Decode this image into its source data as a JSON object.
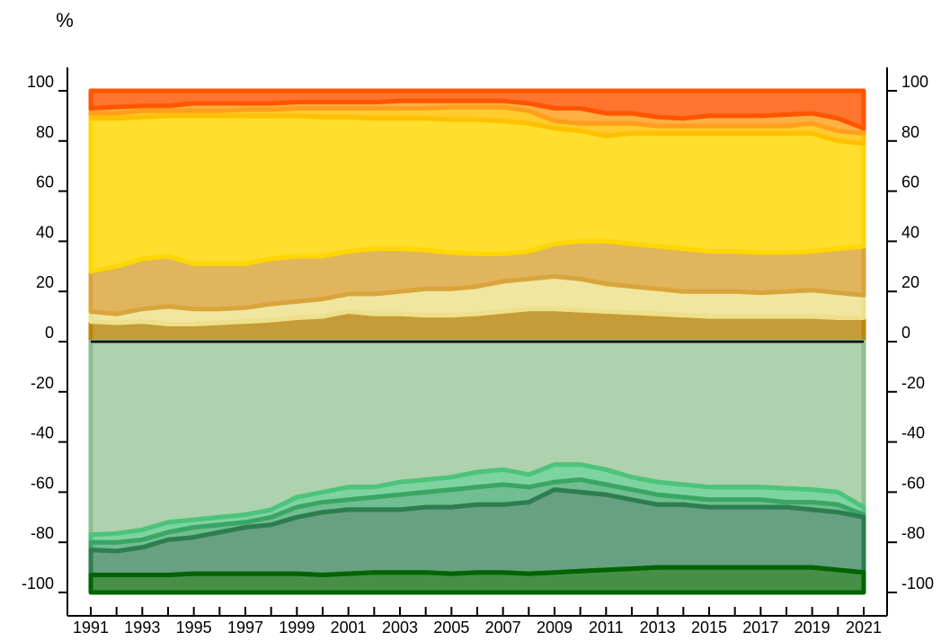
{
  "chart_data": {
    "type": "area",
    "unit": "%",
    "x": [
      1991,
      1992,
      1993,
      1994,
      1995,
      1996,
      1997,
      1998,
      1999,
      2000,
      2001,
      2002,
      2003,
      2004,
      2005,
      2006,
      2007,
      2008,
      2009,
      2010,
      2011,
      2012,
      2013,
      2014,
      2015,
      2016,
      2017,
      2018,
      2019,
      2020,
      2021
    ],
    "x_tick_labels": [
      "1991",
      "1993",
      "1995",
      "1997",
      "1999",
      "2001",
      "2003",
      "2005",
      "2007",
      "2009",
      "2011",
      "2013",
      "2015",
      "2017",
      "2019",
      "2021"
    ],
    "xlim": [
      1991,
      2021
    ],
    "ylim": [
      -100,
      100
    ],
    "y_ticks": [
      100,
      80,
      60,
      40,
      20,
      0,
      -20,
      -40,
      -60,
      -80,
      -100
    ],
    "grid": false,
    "legend": "none",
    "positive_boundaries": [
      {
        "color": "#b8860b",
        "values": [
          8,
          7.5,
          8,
          7,
          7,
          7.5,
          8,
          8.5,
          9.5,
          10,
          12,
          11,
          11,
          10.5,
          10.5,
          11,
          12,
          13,
          13,
          12.5,
          12,
          11.5,
          11,
          10.5,
          10,
          10,
          10,
          10,
          10,
          9.5,
          9.5
        ]
      },
      {
        "color": "#ede08a",
        "values": [
          12,
          11,
          13,
          14,
          13,
          13,
          13.5,
          15,
          16,
          17,
          19,
          19,
          20,
          21,
          21,
          22,
          24,
          25,
          26,
          25,
          23,
          22,
          21,
          20,
          20,
          20,
          19.5,
          20,
          20.5,
          19.5,
          18.5
        ]
      },
      {
        "color": "#d9a53b",
        "values": [
          28,
          30,
          33,
          34,
          31,
          31,
          31,
          33,
          34,
          34,
          36,
          37,
          37,
          36.5,
          35.5,
          35,
          35,
          36,
          39,
          40,
          40,
          39,
          38,
          37,
          36,
          36,
          35.5,
          35.5,
          36,
          37,
          38
        ]
      },
      {
        "color": "#ffd700",
        "values": [
          89,
          89,
          89.5,
          90,
          90,
          90,
          90,
          90,
          90,
          89.5,
          89.5,
          89,
          89,
          89,
          88.5,
          88.5,
          88,
          87,
          85,
          84,
          82,
          83,
          83,
          83,
          83,
          83,
          83,
          83,
          83,
          80,
          79
        ]
      },
      {
        "color": "#ffc000",
        "values": [
          91,
          91,
          92,
          92,
          92,
          92,
          92.5,
          92.5,
          93,
          93,
          93,
          93,
          93,
          93,
          93.5,
          93.5,
          93.5,
          92,
          88,
          87,
          87,
          87,
          86,
          86,
          86,
          86,
          86,
          86,
          87,
          84,
          83
        ]
      },
      {
        "color": "#ff9f1c",
        "values": [
          93,
          93.5,
          94,
          94,
          95,
          95,
          95,
          95,
          95.5,
          95.5,
          95.5,
          95.5,
          96,
          96,
          96,
          96,
          96,
          95,
          93,
          93,
          91,
          91,
          89.5,
          89,
          90,
          90,
          90,
          90.5,
          91,
          89,
          85
        ]
      },
      {
        "color": "#ff5500",
        "values": [
          100,
          100,
          100,
          100,
          100,
          100,
          100,
          100,
          100,
          100,
          100,
          100,
          100,
          100,
          100,
          100,
          100,
          100,
          100,
          100,
          100,
          100,
          100,
          100,
          100,
          100,
          100,
          100,
          100,
          100,
          100
        ]
      }
    ],
    "negative_boundaries": [
      {
        "color": "#8fbf8f",
        "values": [
          -77,
          -76.5,
          -75,
          -72,
          -71,
          -70,
          -69,
          -67,
          -62,
          -60,
          -58,
          -58,
          -56,
          -55,
          -54,
          -52,
          -51,
          -53,
          -49,
          -49,
          -51,
          -54,
          -56,
          -57,
          -58,
          -58,
          -58,
          -58.5,
          -59,
          -60,
          -66
        ]
      },
      {
        "color": "#4cc47c",
        "values": [
          -80,
          -80,
          -79,
          -76,
          -74,
          -73,
          -72,
          -70,
          -66,
          -64,
          -63,
          -62,
          -61,
          -60,
          -59,
          -58,
          -57,
          -58,
          -56,
          -55,
          -57,
          -59,
          -61,
          -62,
          -63,
          -63,
          -63,
          -64,
          -64,
          -65,
          -69
        ]
      },
      {
        "color": "#3aa565",
        "values": [
          -83,
          -83.5,
          -82,
          -79,
          -78,
          -76,
          -74,
          -73,
          -70,
          -68,
          -67,
          -67,
          -67,
          -66,
          -66,
          -65,
          -65,
          -64,
          -59,
          -60,
          -61,
          -63,
          -65,
          -65,
          -66,
          -66,
          -66,
          -66,
          -67,
          -68,
          -70
        ]
      },
      {
        "color": "#2e7d50",
        "values": [
          -93,
          -93,
          -93,
          -93,
          -92.5,
          -92.5,
          -92.5,
          -92.5,
          -92.5,
          -93,
          -92.5,
          -92,
          -92,
          -92,
          -92.5,
          -92,
          -92,
          -92.5,
          -92,
          -91.5,
          -91,
          -90.5,
          -90,
          -90,
          -90,
          -90,
          -90,
          -90,
          -90,
          -91,
          -92
        ]
      },
      {
        "color": "#006400",
        "values": [
          -100,
          -100,
          -100,
          -100,
          -100,
          -100,
          -100,
          -100,
          -100,
          -100,
          -100,
          -100,
          -100,
          -100,
          -100,
          -100,
          -100,
          -100,
          -100,
          -100,
          -100,
          -100,
          -100,
          -100,
          -100,
          -100,
          -100,
          -100,
          -100,
          -100,
          -100
        ]
      }
    ]
  }
}
